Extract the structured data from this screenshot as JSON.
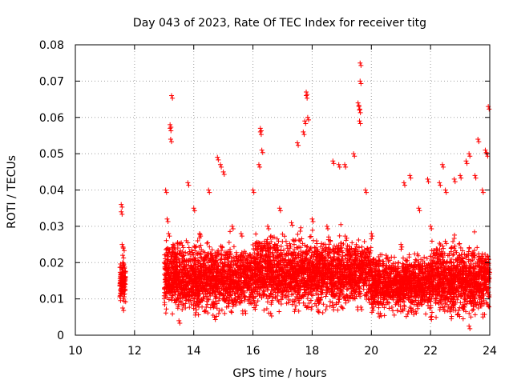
{
  "chart_data": {
    "type": "scatter",
    "title": "Day 043 of 2023, Rate Of TEC Index for receiver titg",
    "xlabel": "GPS time / hours",
    "ylabel": "ROTI / TECUs",
    "xlim": [
      10,
      24
    ],
    "ylim": [
      0,
      0.08
    ],
    "x_ticks": [
      10,
      12,
      14,
      16,
      18,
      20,
      22,
      24
    ],
    "x_tick_labels": [
      "10",
      "12",
      "14",
      "16",
      "18",
      "20",
      "22",
      "24"
    ],
    "y_ticks": [
      0,
      0.01,
      0.02,
      0.03,
      0.04,
      0.05,
      0.06,
      0.07,
      0.08
    ],
    "y_tick_labels": [
      "0",
      "0.01",
      "0.02",
      "0.03",
      "0.04",
      "0.05",
      "0.06",
      "0.07",
      "0.08"
    ],
    "grid": true,
    "marker": "+",
    "series_color": "#ff0000",
    "series": [
      {
        "name": "ROTI",
        "description": "dense red plus-marker cloud; sparse column near 11.6 h, continuous coverage 13.0-24.0 h",
        "points": [
          [
            11.55,
            0.036
          ],
          [
            11.55,
            0.034
          ],
          [
            11.58,
            0.025
          ],
          [
            11.6,
            0.022
          ],
          [
            11.6,
            0.02
          ],
          [
            11.58,
            0.018
          ],
          [
            11.6,
            0.016
          ],
          [
            11.57,
            0.014
          ],
          [
            11.6,
            0.012
          ],
          [
            11.62,
            0.01
          ],
          [
            11.6,
            0.0075
          ],
          [
            11.62,
            0.024
          ],
          [
            13.05,
            0.04
          ],
          [
            13.1,
            0.032
          ],
          [
            13.15,
            0.028
          ],
          [
            13.2,
            0.058
          ],
          [
            13.2,
            0.057
          ],
          [
            13.22,
            0.054
          ],
          [
            13.25,
            0.066
          ],
          [
            13.3,
            0.025
          ],
          [
            13.5,
            0.004
          ],
          [
            13.8,
            0.042
          ],
          [
            14.0,
            0.035
          ],
          [
            14.2,
            0.028
          ],
          [
            14.5,
            0.04
          ],
          [
            14.8,
            0.049
          ],
          [
            14.9,
            0.047
          ],
          [
            15.0,
            0.045
          ],
          [
            15.3,
            0.03
          ],
          [
            15.6,
            0.028
          ],
          [
            16.0,
            0.04
          ],
          [
            16.2,
            0.047
          ],
          [
            16.25,
            0.057
          ],
          [
            16.25,
            0.056
          ],
          [
            16.3,
            0.051
          ],
          [
            16.5,
            0.03
          ],
          [
            16.9,
            0.035
          ],
          [
            17.3,
            0.031
          ],
          [
            17.5,
            0.053
          ],
          [
            17.7,
            0.056
          ],
          [
            17.75,
            0.059
          ],
          [
            17.8,
            0.066
          ],
          [
            17.8,
            0.067
          ],
          [
            17.85,
            0.06
          ],
          [
            18.0,
            0.032
          ],
          [
            18.5,
            0.03
          ],
          [
            18.7,
            0.048
          ],
          [
            18.9,
            0.047
          ],
          [
            19.1,
            0.047
          ],
          [
            19.4,
            0.05
          ],
          [
            19.55,
            0.064
          ],
          [
            19.58,
            0.063
          ],
          [
            19.6,
            0.062
          ],
          [
            19.6,
            0.059
          ],
          [
            19.62,
            0.07
          ],
          [
            19.62,
            0.075
          ],
          [
            19.8,
            0.04
          ],
          [
            20.0,
            0.028
          ],
          [
            20.5,
            0.022
          ],
          [
            21.0,
            0.025
          ],
          [
            21.1,
            0.042
          ],
          [
            21.3,
            0.044
          ],
          [
            21.6,
            0.035
          ],
          [
            21.9,
            0.043
          ],
          [
            22.0,
            0.03
          ],
          [
            22.3,
            0.042
          ],
          [
            22.4,
            0.047
          ],
          [
            22.5,
            0.04
          ],
          [
            22.8,
            0.043
          ],
          [
            23.0,
            0.044
          ],
          [
            23.2,
            0.048
          ],
          [
            23.3,
            0.05
          ],
          [
            23.5,
            0.044
          ],
          [
            23.6,
            0.054
          ],
          [
            23.75,
            0.04
          ],
          [
            23.85,
            0.051
          ],
          [
            23.9,
            0.05
          ],
          [
            23.95,
            0.063
          ],
          [
            23.3,
            0.0025
          ],
          [
            22.0,
            0.005
          ],
          [
            20.3,
            0.006
          ],
          [
            18.2,
            0.007
          ],
          [
            16.6,
            0.006
          ],
          [
            14.7,
            0.005
          ]
        ]
      }
    ],
    "density_bands": [
      {
        "x_range": [
          11.5,
          11.7
        ],
        "y_range": [
          0.007,
          0.025
        ]
      },
      {
        "x_range": [
          13.0,
          16.0
        ],
        "y_range": [
          0.005,
          0.031
        ]
      },
      {
        "x_range": [
          16.0,
          20.0
        ],
        "y_range": [
          0.006,
          0.033
        ]
      },
      {
        "x_range": [
          20.0,
          22.0
        ],
        "y_range": [
          0.005,
          0.027
        ]
      },
      {
        "x_range": [
          22.0,
          24.0
        ],
        "y_range": [
          0.004,
          0.031
        ]
      }
    ]
  }
}
